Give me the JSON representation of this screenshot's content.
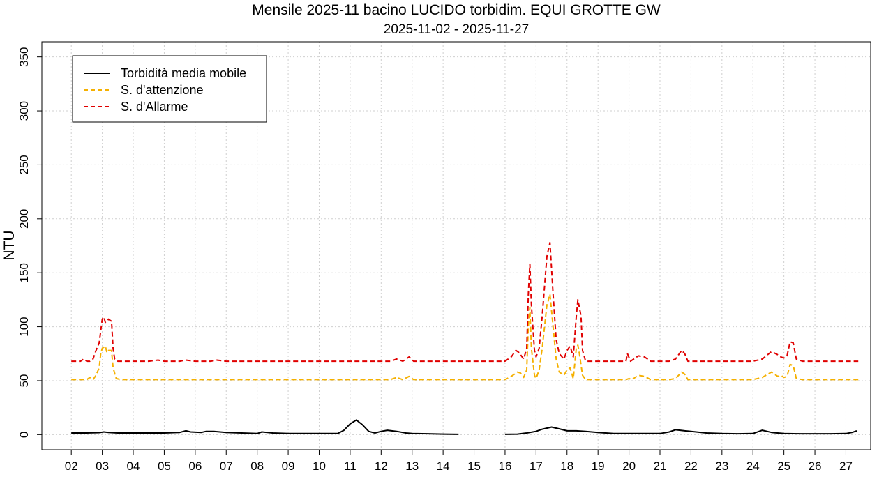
{
  "chart_data": {
    "type": "line",
    "title": "Mensile 2025-11 bacino LUCIDO torbidim. EQUI GROTTE GW",
    "subtitle": "2025-11-02 - 2025-11-27",
    "ylabel": "NTU",
    "xlabel": "",
    "ylim": [
      -14,
      364
    ],
    "xlim": [
      1.05,
      27.8
    ],
    "yticks": [
      0,
      50,
      100,
      150,
      200,
      250,
      300,
      350
    ],
    "x_tick_labels": [
      "02",
      "03",
      "04",
      "05",
      "06",
      "07",
      "08",
      "09",
      "10",
      "11",
      "12",
      "13",
      "14",
      "15",
      "16",
      "17",
      "18",
      "19",
      "20",
      "21",
      "22",
      "23",
      "24",
      "25",
      "26",
      "27"
    ],
    "grid": true,
    "legend_position": "top-left",
    "series": [
      {
        "name": "Torbidità media mobile",
        "color": "#000000",
        "dash": "solid",
        "segments": [
          [
            [
              2,
              1.5
            ],
            [
              2.5,
              1.5
            ],
            [
              2.9,
              1.8
            ],
            [
              3.05,
              2.5
            ],
            [
              3.2,
              2.0
            ],
            [
              3.5,
              1.5
            ],
            [
              4.0,
              1.5
            ],
            [
              4.5,
              1.5
            ],
            [
              5.0,
              1.5
            ],
            [
              5.5,
              2.0
            ],
            [
              5.7,
              3.5
            ],
            [
              5.85,
              2.5
            ],
            [
              6.2,
              2.0
            ],
            [
              6.35,
              3.0
            ],
            [
              6.6,
              3.0
            ],
            [
              7.0,
              2.0
            ],
            [
              7.5,
              1.5
            ],
            [
              8.0,
              1.0
            ],
            [
              8.15,
              2.5
            ],
            [
              8.5,
              1.5
            ],
            [
              9.0,
              1.0
            ],
            [
              9.5,
              1.0
            ],
            [
              10.0,
              1.0
            ],
            [
              10.3,
              1.0
            ],
            [
              10.6,
              1.0
            ],
            [
              10.8,
              4.0
            ],
            [
              11.0,
              10.0
            ],
            [
              11.2,
              13.5
            ],
            [
              11.4,
              9.0
            ],
            [
              11.6,
              3.0
            ],
            [
              11.8,
              1.5
            ],
            [
              12.0,
              3.0
            ],
            [
              12.2,
              4.0
            ],
            [
              12.5,
              3.0
            ],
            [
              12.8,
              1.5
            ],
            [
              13.0,
              1.0
            ],
            [
              13.5,
              0.8
            ],
            [
              14.0,
              0.5
            ],
            [
              14.5,
              0.3
            ]
          ],
          [
            [
              16.0,
              0.3
            ],
            [
              16.4,
              0.5
            ],
            [
              16.7,
              1.5
            ],
            [
              17.0,
              3.0
            ],
            [
              17.2,
              5.0
            ],
            [
              17.5,
              7.0
            ],
            [
              17.8,
              5.0
            ],
            [
              18.0,
              3.5
            ],
            [
              18.3,
              3.5
            ],
            [
              18.6,
              3.0
            ],
            [
              19.0,
              2.0
            ],
            [
              19.5,
              1.0
            ],
            [
              20.0,
              1.0
            ],
            [
              20.5,
              1.0
            ],
            [
              21.0,
              1.0
            ],
            [
              21.3,
              2.5
            ],
            [
              21.5,
              4.5
            ],
            [
              21.8,
              3.5
            ],
            [
              22.0,
              3.0
            ],
            [
              22.5,
              1.5
            ],
            [
              23.0,
              1.0
            ],
            [
              23.5,
              0.8
            ],
            [
              24.0,
              1.0
            ],
            [
              24.2,
              3.0
            ],
            [
              24.3,
              4.0
            ],
            [
              24.6,
              2.0
            ],
            [
              25.0,
              1.0
            ],
            [
              25.5,
              0.8
            ],
            [
              26.0,
              0.8
            ],
            [
              26.5,
              0.8
            ],
            [
              27.0,
              1.0
            ],
            [
              27.2,
              2.0
            ],
            [
              27.35,
              3.5
            ]
          ]
        ]
      },
      {
        "name": "S. d'attenzione",
        "color": "#F5B000",
        "dash": "dashed",
        "segments": [
          [
            [
              2,
              51
            ],
            [
              2.3,
              51
            ],
            [
              2.5,
              51
            ],
            [
              2.6,
              53
            ],
            [
              2.7,
              51
            ],
            [
              2.8,
              55
            ],
            [
              2.9,
              62
            ],
            [
              2.95,
              75
            ],
            [
              3.0,
              80
            ],
            [
              3.1,
              82
            ],
            [
              3.15,
              76
            ],
            [
              3.2,
              78
            ],
            [
              3.3,
              78
            ],
            [
              3.35,
              62
            ],
            [
              3.45,
              52
            ],
            [
              3.6,
              51
            ],
            [
              4.0,
              51
            ],
            [
              4.5,
              51
            ],
            [
              5.0,
              51
            ],
            [
              5.5,
              51
            ],
            [
              6.0,
              51
            ],
            [
              6.5,
              51
            ],
            [
              7.0,
              51
            ],
            [
              7.5,
              51
            ],
            [
              8.0,
              51
            ],
            [
              8.5,
              51
            ],
            [
              9.0,
              51
            ],
            [
              9.5,
              51
            ],
            [
              10.0,
              51
            ],
            [
              10.5,
              51
            ],
            [
              11.0,
              51
            ],
            [
              11.5,
              51
            ],
            [
              12.0,
              51
            ],
            [
              12.3,
              51
            ],
            [
              12.5,
              53
            ],
            [
              12.7,
              51
            ],
            [
              12.9,
              54
            ],
            [
              13.05,
              51
            ],
            [
              13.5,
              51
            ],
            [
              14.0,
              51
            ],
            [
              14.5,
              51
            ],
            [
              15.0,
              51
            ],
            [
              15.5,
              51
            ],
            [
              16.0,
              51
            ],
            [
              16.2,
              54
            ],
            [
              16.4,
              58
            ],
            [
              16.5,
              57
            ],
            [
              16.6,
              53
            ],
            [
              16.7,
              60
            ],
            [
              16.75,
              100
            ],
            [
              16.8,
              118
            ],
            [
              16.85,
              80
            ],
            [
              16.95,
              55
            ],
            [
              17.0,
              52
            ],
            [
              17.1,
              60
            ],
            [
              17.2,
              80
            ],
            [
              17.35,
              120
            ],
            [
              17.45,
              130
            ],
            [
              17.55,
              100
            ],
            [
              17.65,
              70
            ],
            [
              17.75,
              58
            ],
            [
              17.9,
              55
            ],
            [
              18.0,
              60
            ],
            [
              18.1,
              62
            ],
            [
              18.2,
              52
            ],
            [
              18.3,
              80
            ],
            [
              18.35,
              83
            ],
            [
              18.4,
              75
            ],
            [
              18.5,
              55
            ],
            [
              18.6,
              51
            ],
            [
              19.0,
              51
            ],
            [
              19.5,
              51
            ],
            [
              19.9,
              51
            ],
            [
              20.0,
              52
            ],
            [
              20.1,
              51
            ],
            [
              20.3,
              55
            ],
            [
              20.5,
              54
            ],
            [
              20.7,
              51
            ],
            [
              21.0,
              51
            ],
            [
              21.3,
              51
            ],
            [
              21.5,
              52
            ],
            [
              21.7,
              58
            ],
            [
              21.8,
              56
            ],
            [
              21.9,
              51
            ],
            [
              22.0,
              51
            ],
            [
              22.5,
              51
            ],
            [
              23.0,
              51
            ],
            [
              23.5,
              51
            ],
            [
              24.0,
              51
            ],
            [
              24.3,
              53
            ],
            [
              24.6,
              58
            ],
            [
              24.8,
              54
            ],
            [
              24.9,
              55
            ],
            [
              25.0,
              53
            ],
            [
              25.1,
              54
            ],
            [
              25.2,
              65
            ],
            [
              25.3,
              64
            ],
            [
              25.4,
              52
            ],
            [
              25.6,
              51
            ],
            [
              26.0,
              51
            ],
            [
              26.5,
              51
            ],
            [
              27.0,
              51
            ],
            [
              27.4,
              51
            ]
          ]
        ]
      },
      {
        "name": "S. d'Allarme",
        "color": "#E00000",
        "dash": "dashed",
        "segments": [
          [
            [
              2,
              68
            ],
            [
              2.3,
              68
            ],
            [
              2.4,
              70
            ],
            [
              2.5,
              68
            ],
            [
              2.6,
              68
            ],
            [
              2.7,
              70
            ],
            [
              2.8,
              78
            ],
            [
              2.9,
              85
            ],
            [
              3.0,
              107
            ],
            [
              3.05,
              109
            ],
            [
              3.1,
              104
            ],
            [
              3.2,
              107
            ],
            [
              3.3,
              105
            ],
            [
              3.35,
              80
            ],
            [
              3.4,
              70
            ],
            [
              3.5,
              68
            ],
            [
              4.0,
              68
            ],
            [
              4.5,
              68
            ],
            [
              4.8,
              69
            ],
            [
              5.0,
              68
            ],
            [
              5.5,
              68
            ],
            [
              5.7,
              69
            ],
            [
              6.0,
              68
            ],
            [
              6.5,
              68
            ],
            [
              6.7,
              69
            ],
            [
              7.0,
              68
            ],
            [
              7.5,
              68
            ],
            [
              8.0,
              68
            ],
            [
              8.5,
              68
            ],
            [
              9.0,
              68
            ],
            [
              9.5,
              68
            ],
            [
              10.0,
              68
            ],
            [
              10.5,
              68
            ],
            [
              11.0,
              68
            ],
            [
              11.5,
              68
            ],
            [
              12.0,
              68
            ],
            [
              12.3,
              68
            ],
            [
              12.5,
              70
            ],
            [
              12.7,
              68
            ],
            [
              12.9,
              72
            ],
            [
              13.05,
              68
            ],
            [
              13.5,
              68
            ],
            [
              14.0,
              68
            ],
            [
              14.5,
              68
            ],
            [
              15.0,
              68
            ],
            [
              15.5,
              68
            ],
            [
              16.0,
              68
            ],
            [
              16.2,
              72
            ],
            [
              16.35,
              78
            ],
            [
              16.45,
              76
            ],
            [
              16.6,
              70
            ],
            [
              16.7,
              80
            ],
            [
              16.75,
              130
            ],
            [
              16.8,
              158
            ],
            [
              16.85,
              120
            ],
            [
              16.95,
              78
            ],
            [
              17.0,
              72
            ],
            [
              17.1,
              80
            ],
            [
              17.2,
              110
            ],
            [
              17.35,
              165
            ],
            [
              17.45,
              178
            ],
            [
              17.55,
              130
            ],
            [
              17.65,
              88
            ],
            [
              17.75,
              75
            ],
            [
              17.9,
              70
            ],
            [
              18.0,
              78
            ],
            [
              18.1,
              82
            ],
            [
              18.2,
              72
            ],
            [
              18.3,
              110
            ],
            [
              18.35,
              125
            ],
            [
              18.45,
              110
            ],
            [
              18.5,
              78
            ],
            [
              18.6,
              68
            ],
            [
              19.0,
              68
            ],
            [
              19.5,
              68
            ],
            [
              19.9,
              68
            ],
            [
              19.95,
              75
            ],
            [
              20.05,
              68
            ],
            [
              20.3,
              73
            ],
            [
              20.5,
              72
            ],
            [
              20.7,
              68
            ],
            [
              21.0,
              68
            ],
            [
              21.3,
              68
            ],
            [
              21.5,
              70
            ],
            [
              21.7,
              78
            ],
            [
              21.8,
              75
            ],
            [
              21.9,
              68
            ],
            [
              22.0,
              68
            ],
            [
              22.5,
              68
            ],
            [
              23.0,
              68
            ],
            [
              23.5,
              68
            ],
            [
              24.0,
              68
            ],
            [
              24.3,
              70
            ],
            [
              24.6,
              77
            ],
            [
              24.8,
              74
            ],
            [
              24.9,
              72
            ],
            [
              25.0,
              71
            ],
            [
              25.1,
              73
            ],
            [
              25.2,
              86
            ],
            [
              25.3,
              85
            ],
            [
              25.4,
              70
            ],
            [
              25.6,
              68
            ],
            [
              26.0,
              68
            ],
            [
              26.5,
              68
            ],
            [
              27.0,
              68
            ],
            [
              27.4,
              68
            ]
          ]
        ]
      }
    ]
  }
}
